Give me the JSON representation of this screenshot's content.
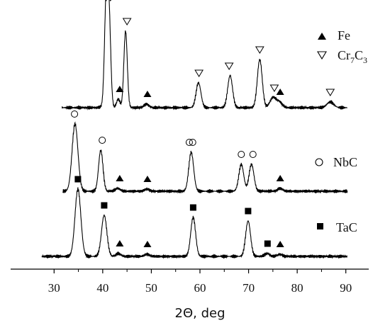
{
  "chart_data": {
    "type": "line",
    "xlabel": "2Θ, deg",
    "ylabel": "",
    "title": "",
    "xlim": [
      25,
      95
    ],
    "x_ticks": [
      "30",
      "40",
      "50",
      "60",
      "70",
      "80",
      "90"
    ],
    "y_ticks": false,
    "grid": false,
    "legend_entries": [
      {
        "marker": "filled-triangle",
        "label": "Fe"
      },
      {
        "marker": "open-triangle-down",
        "label": "Cr",
        "sub1": "7",
        "mid": "C",
        "sub2": "3"
      },
      {
        "marker": "open-circle",
        "label": "NbC"
      },
      {
        "marker": "filled-square",
        "label": "TaC"
      }
    ],
    "series": [
      {
        "peaks": [
          [
            39.8,
            0.5,
            1.0
          ],
          [
            40.7,
            0.35,
            142
          ],
          [
            41.3,
            0.35,
            125
          ],
          [
            43.2,
            0.35,
            12
          ],
          [
            44.7,
            0.35,
            108
          ],
          [
            49,
            0.5,
            5
          ],
          [
            59.7,
            0.5,
            35
          ],
          [
            66.2,
            0.5,
            45
          ],
          [
            72.3,
            0.5,
            68
          ],
          [
            75,
            0.6,
            14
          ],
          [
            76.3,
            0.6,
            8
          ],
          [
            86.8,
            0.7,
            8
          ]
        ],
        "marks": [
          {
            "x": 40.7,
            "m": "v"
          },
          {
            "x": 41.6,
            "m": "v"
          },
          {
            "x": 45.0,
            "m": "v"
          },
          {
            "x": 43.5,
            "m": "t"
          },
          {
            "x": 49.2,
            "m": "t"
          },
          {
            "x": 59.8,
            "m": "v"
          },
          {
            "x": 66.0,
            "m": "v"
          },
          {
            "x": 72.3,
            "m": "v"
          },
          {
            "x": 75.3,
            "m": "v"
          },
          {
            "x": 76.5,
            "m": "t"
          },
          {
            "x": 86.8,
            "m": "v"
          }
        ]
      },
      {
        "peaks": [
          [
            34.3,
            0.6,
            95
          ],
          [
            39.6,
            0.45,
            58
          ],
          [
            43.1,
            0.5,
            4
          ],
          [
            49.1,
            0.5,
            3
          ],
          [
            58.2,
            0.5,
            55
          ],
          [
            68.5,
            0.5,
            38
          ],
          [
            70.6,
            0.5,
            38
          ],
          [
            76.5,
            0.5,
            4
          ]
        ],
        "marks": [
          {
            "x": 34.2,
            "m": "o"
          },
          {
            "x": 39.9,
            "m": "o"
          },
          {
            "x": 43.5,
            "m": "t"
          },
          {
            "x": 49.2,
            "m": "t"
          },
          {
            "x": 57.8,
            "m": "o"
          },
          {
            "x": 58.5,
            "m": "o"
          },
          {
            "x": 68.5,
            "m": "o"
          },
          {
            "x": 70.9,
            "m": "o"
          },
          {
            "x": 76.5,
            "m": "t"
          }
        ]
      },
      {
        "peaks": [
          [
            34.9,
            0.6,
            95
          ],
          [
            40.3,
            0.55,
            58
          ],
          [
            43.2,
            0.5,
            4
          ],
          [
            49.1,
            0.5,
            3
          ],
          [
            58.6,
            0.5,
            55
          ],
          [
            69.9,
            0.5,
            50
          ],
          [
            73.8,
            0.5,
            4
          ],
          [
            76.4,
            0.5,
            3
          ]
        ],
        "marks": [
          {
            "x": 34.9,
            "m": "s"
          },
          {
            "x": 40.3,
            "m": "s"
          },
          {
            "x": 43.5,
            "m": "t"
          },
          {
            "x": 49.2,
            "m": "t"
          },
          {
            "x": 58.6,
            "m": "s"
          },
          {
            "x": 69.9,
            "m": "s"
          },
          {
            "x": 73.9,
            "m": "s"
          },
          {
            "x": 76.5,
            "m": "t"
          }
        ]
      }
    ]
  }
}
